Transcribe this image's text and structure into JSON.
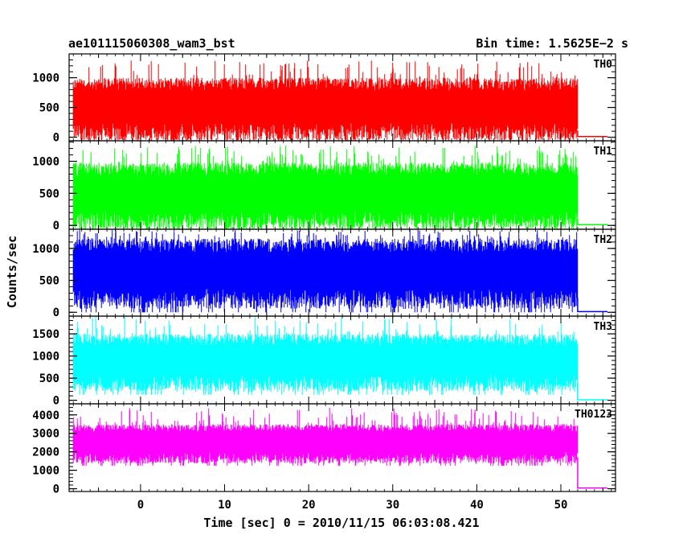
{
  "header": {
    "left_title": "ae101115060308_wam3_bst",
    "right_title": "Bin time: 1.5625E−2 s"
  },
  "chart_data": {
    "type": "line",
    "title": "ae101115060308_wam3_bst",
    "subtitle": "Bin time: 1.5625E−2 s",
    "xlabel": "Time [sec] 0 = 2010/11/15 06:03:08.421",
    "ylabel": "Counts/sec",
    "xlim": [
      -8.5,
      56.5
    ],
    "x_ticks": [
      0,
      10,
      20,
      30,
      40,
      50
    ],
    "x_tick_labels": [
      "0",
      "10",
      "20",
      "30",
      "40",
      "50"
    ],
    "data_x_range": [
      -8.0,
      52.0
    ],
    "bin_time_s": 0.015625,
    "grid": false,
    "legend": "none",
    "panels": [
      {
        "name": "TH0",
        "color": "#ff0000",
        "ylim": [
          -60,
          1400
        ],
        "y_ticks": [
          0,
          500,
          1000
        ],
        "y_tick_labels": [
          "0",
          "500",
          "1000"
        ],
        "base_level": 110,
        "typical_high": 1000,
        "peak": 1300,
        "post_level": 10
      },
      {
        "name": "TH1",
        "color": "#00ff00",
        "ylim": [
          -60,
          1320
        ],
        "y_ticks": [
          0,
          500,
          1000
        ],
        "y_tick_labels": [
          "0",
          "500",
          "1000"
        ],
        "base_level": 100,
        "typical_high": 980,
        "peak": 1250,
        "post_level": 10
      },
      {
        "name": "TH2",
        "color": "#0000ff",
        "ylim": [
          -60,
          1300
        ],
        "y_ticks": [
          0,
          500,
          1000
        ],
        "y_tick_labels": [
          "0",
          "500",
          "1000"
        ],
        "base_level": 230,
        "typical_high": 1150,
        "peak": 1300,
        "post_level": 10
      },
      {
        "name": "TH3",
        "color": "#00ffff",
        "ylim": [
          -80,
          1900
        ],
        "y_ticks": [
          0,
          500,
          1000,
          1500
        ],
        "y_tick_labels": [
          "0",
          "500",
          "1000",
          "1500"
        ],
        "base_level": 400,
        "typical_high": 1500,
        "peak": 1900,
        "post_level": 10
      },
      {
        "name": "TH0123",
        "color": "#ff00ff",
        "ylim": [
          -150,
          4600
        ],
        "y_ticks": [
          0,
          1000,
          2000,
          3000,
          4000
        ],
        "y_tick_labels": [
          "0",
          "1000",
          "2000",
          "3000",
          "4000"
        ],
        "base_level": 1700,
        "typical_high": 3500,
        "peak": 4400,
        "post_level": 40
      }
    ]
  }
}
